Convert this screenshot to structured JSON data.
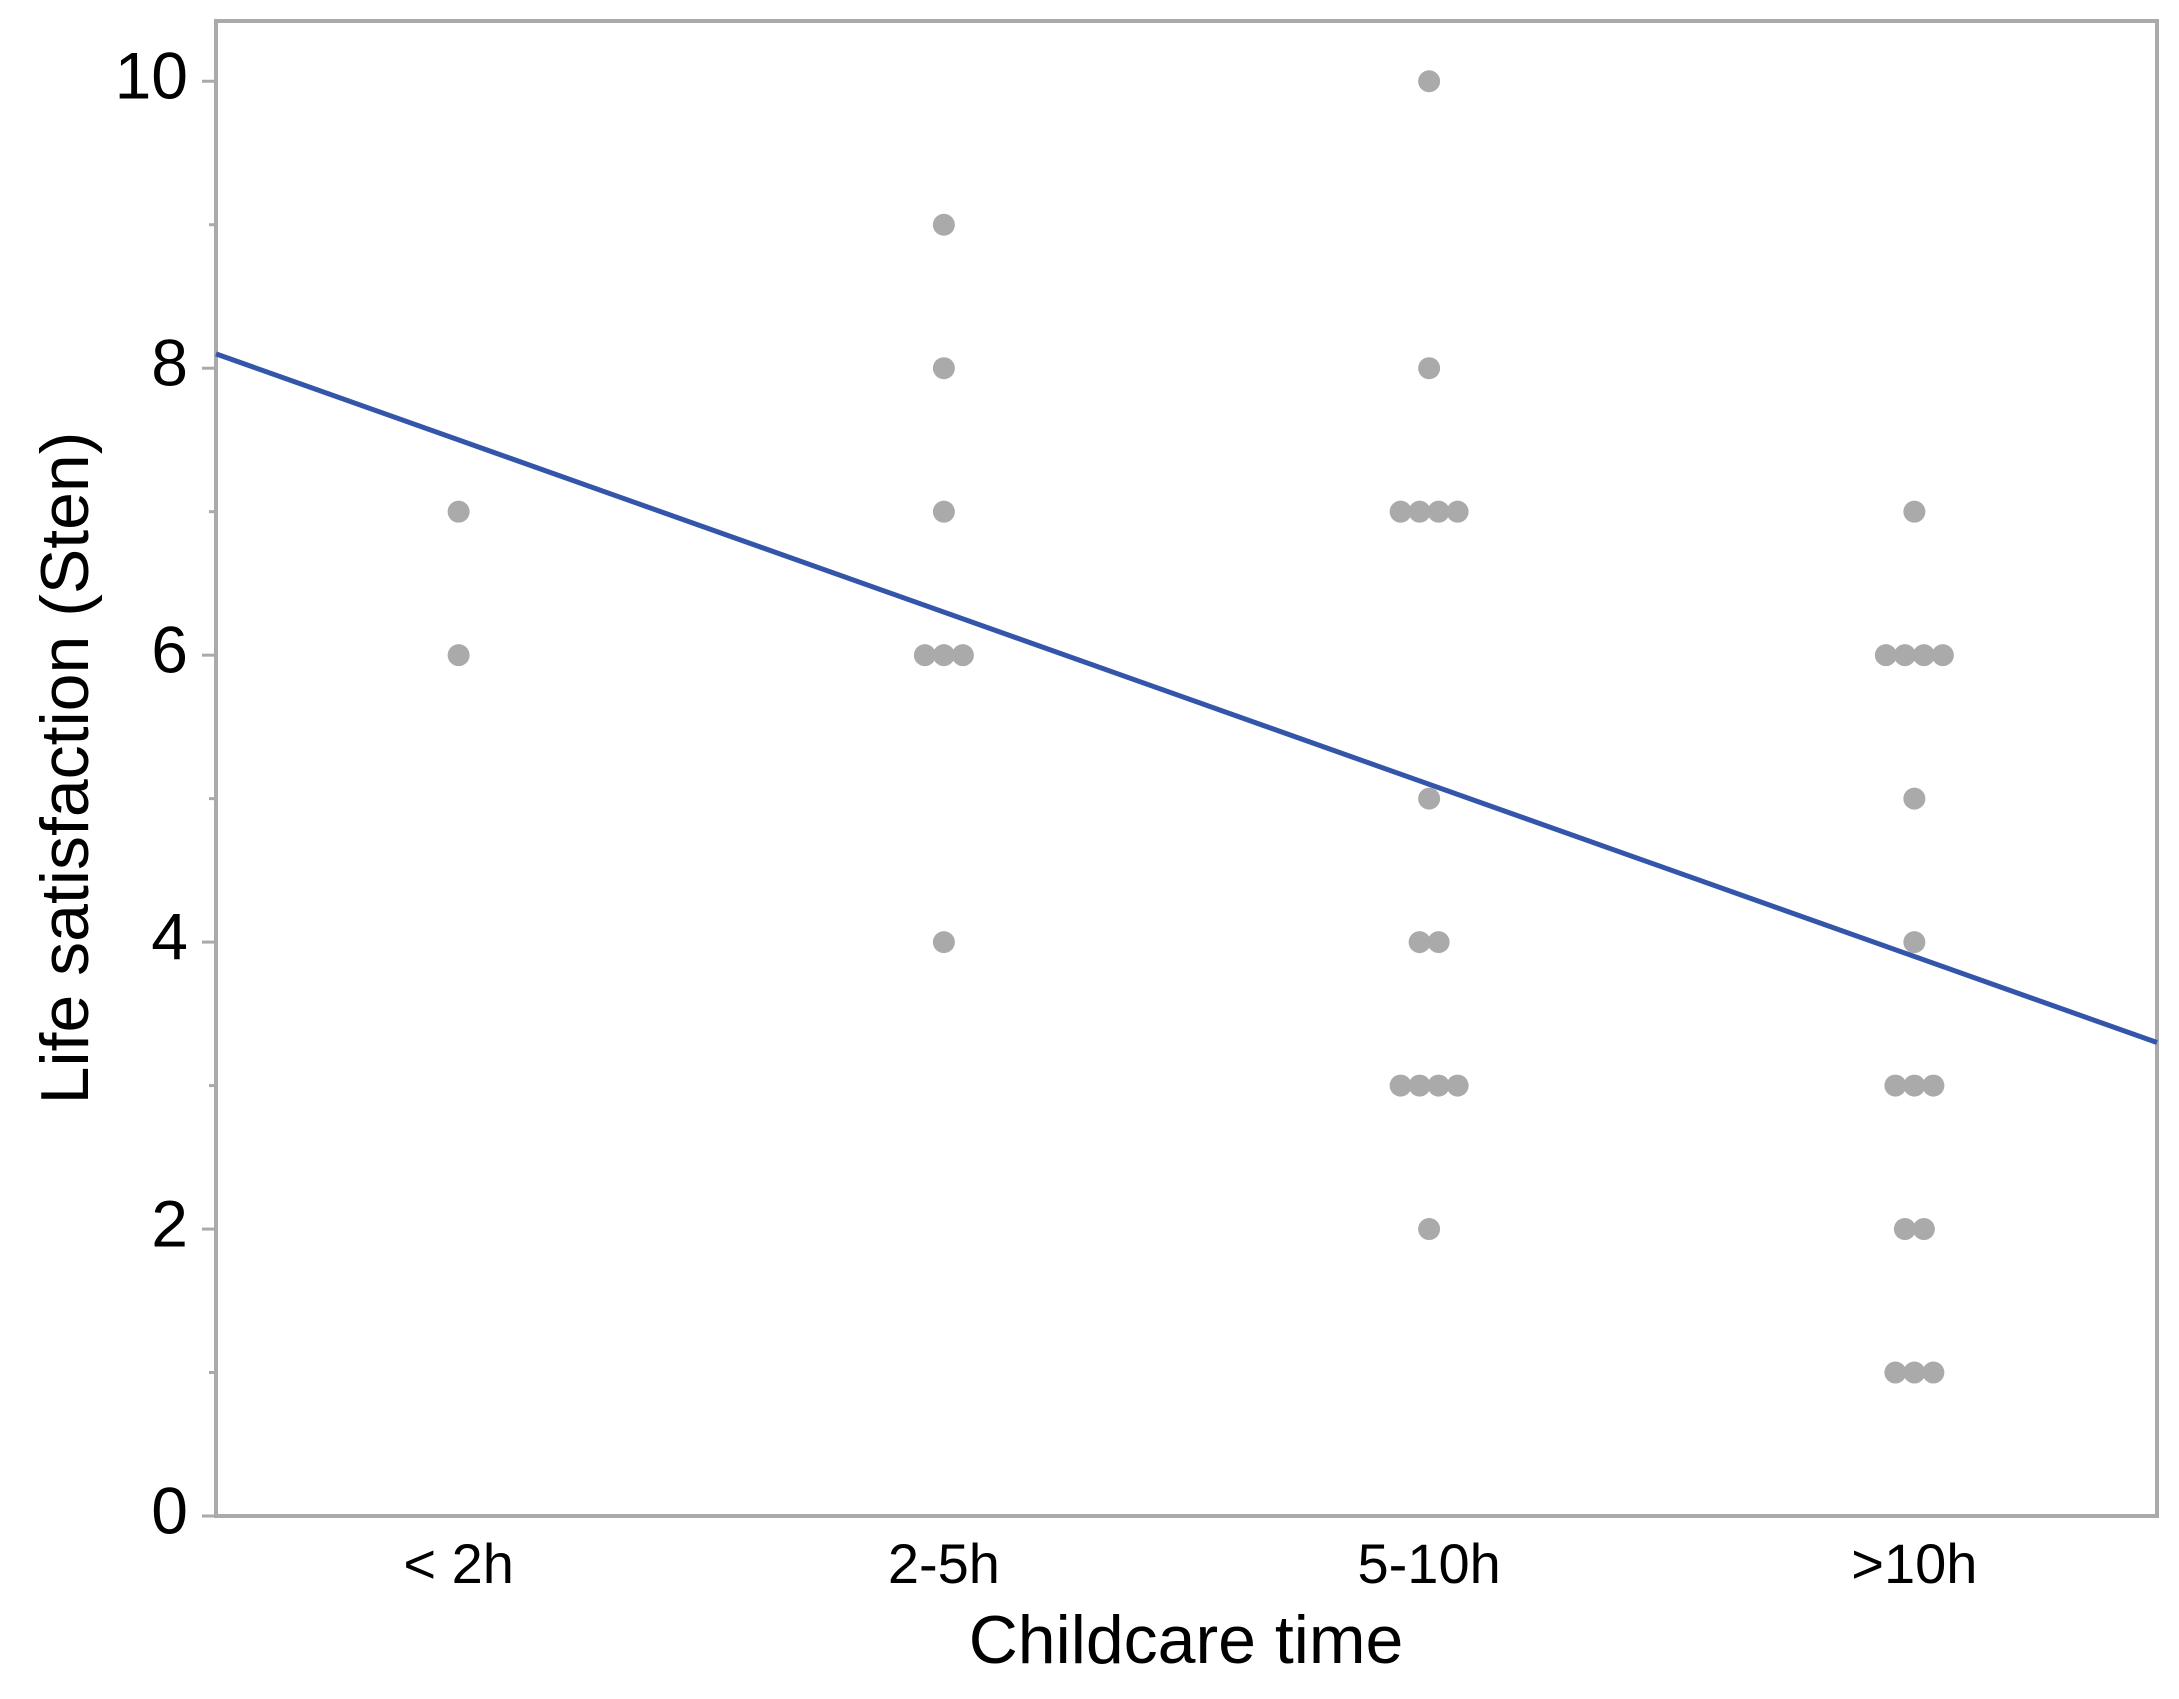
{
  "chart_data": {
    "type": "dotplot",
    "x_label": "Childcare time",
    "y_label": "Life satisfaction (Sten)",
    "categories": [
      "< 2h",
      "2-5h",
      "5-10h",
      ">10h"
    ],
    "values": [
      [
        7,
        6
      ],
      [
        9,
        8,
        7,
        6,
        6,
        6,
        4
      ],
      [
        10,
        8,
        7,
        7,
        7,
        7,
        5,
        4,
        4,
        3,
        3,
        3,
        3,
        2
      ],
      [
        7,
        6,
        6,
        6,
        6,
        5,
        4,
        3,
        3,
        3,
        2,
        2,
        1,
        1,
        1
      ]
    ],
    "color": "#aaaaaa",
    "trend_line": {
      "color": "#3355aa",
      "values": [
        8.1,
        3.3
      ]
    },
    "ylim": [
      0,
      10.42
    ],
    "yticks": [
      0,
      2,
      4,
      6,
      8,
      10
    ],
    "yminor_ticks": [
      1,
      3,
      5,
      7,
      9
    ]
  }
}
